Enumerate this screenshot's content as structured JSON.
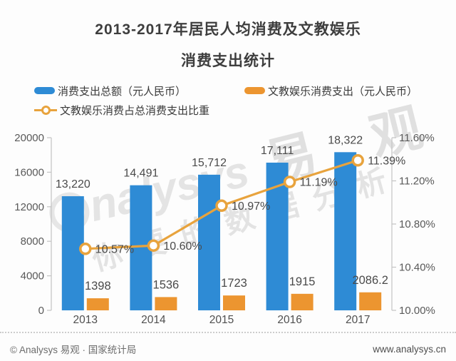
{
  "title": {
    "line1": "2013-2017年居民人均消费及文教娱乐",
    "line2": "消费支出统计"
  },
  "legend": {
    "total_bar": "消费支出总额（元人民币）",
    "culture_bar": "文教娱乐消费支出（元人民币）",
    "ratio_line": "文教娱乐消费占总消费支出比重"
  },
  "chart_data": {
    "type": "bar+line",
    "title": "2013-2017年居民人均消费及文教娱乐消费支出统计",
    "categories": [
      "2013",
      "2014",
      "2015",
      "2016",
      "2017"
    ],
    "series": [
      {
        "name": "消费支出总额（元人民币）",
        "type": "bar",
        "axis": "left",
        "color": "#2e8bd5",
        "values": [
          13220,
          14491,
          15712,
          17111,
          18322
        ],
        "labels": [
          "13,220",
          "14,491",
          "15,712",
          "17,111",
          "18,322"
        ]
      },
      {
        "name": "文教娱乐消费支出（元人民币）",
        "type": "bar",
        "axis": "left",
        "color": "#ec9530",
        "values": [
          1398,
          1536,
          1723,
          1915,
          2086.2
        ],
        "labels": [
          "1398",
          "1536",
          "1723",
          "1915",
          "2086.2"
        ]
      },
      {
        "name": "文教娱乐消费占总消费支出比重",
        "type": "line",
        "axis": "right",
        "color": "#e8a33d",
        "marker_fill": "#ffffff",
        "values": [
          10.57,
          10.6,
          10.97,
          11.19,
          11.39
        ],
        "labels": [
          "10.57%",
          "10.60%",
          "10.97%",
          "11.19%",
          "11.39%"
        ]
      }
    ],
    "left_axis": {
      "min": 0,
      "max": 20000,
      "step": 4000,
      "ticks": [
        "20000",
        "16000",
        "12000",
        "8000",
        "4000",
        "0"
      ]
    },
    "right_axis": {
      "min": 10.0,
      "max": 11.6,
      "step": 0.4,
      "ticks": [
        "11.60%",
        "11.20%",
        "10.80%",
        "10.40%",
        "10.00%"
      ]
    },
    "grid": false,
    "legend_position": "top"
  },
  "watermark": {
    "big": "易 观",
    "script": "nalysys",
    "slogan": "你要的数据分析"
  },
  "footer": {
    "left": "© Analysys 易观 · 国家统计局",
    "right": "www.analysys.cn"
  }
}
